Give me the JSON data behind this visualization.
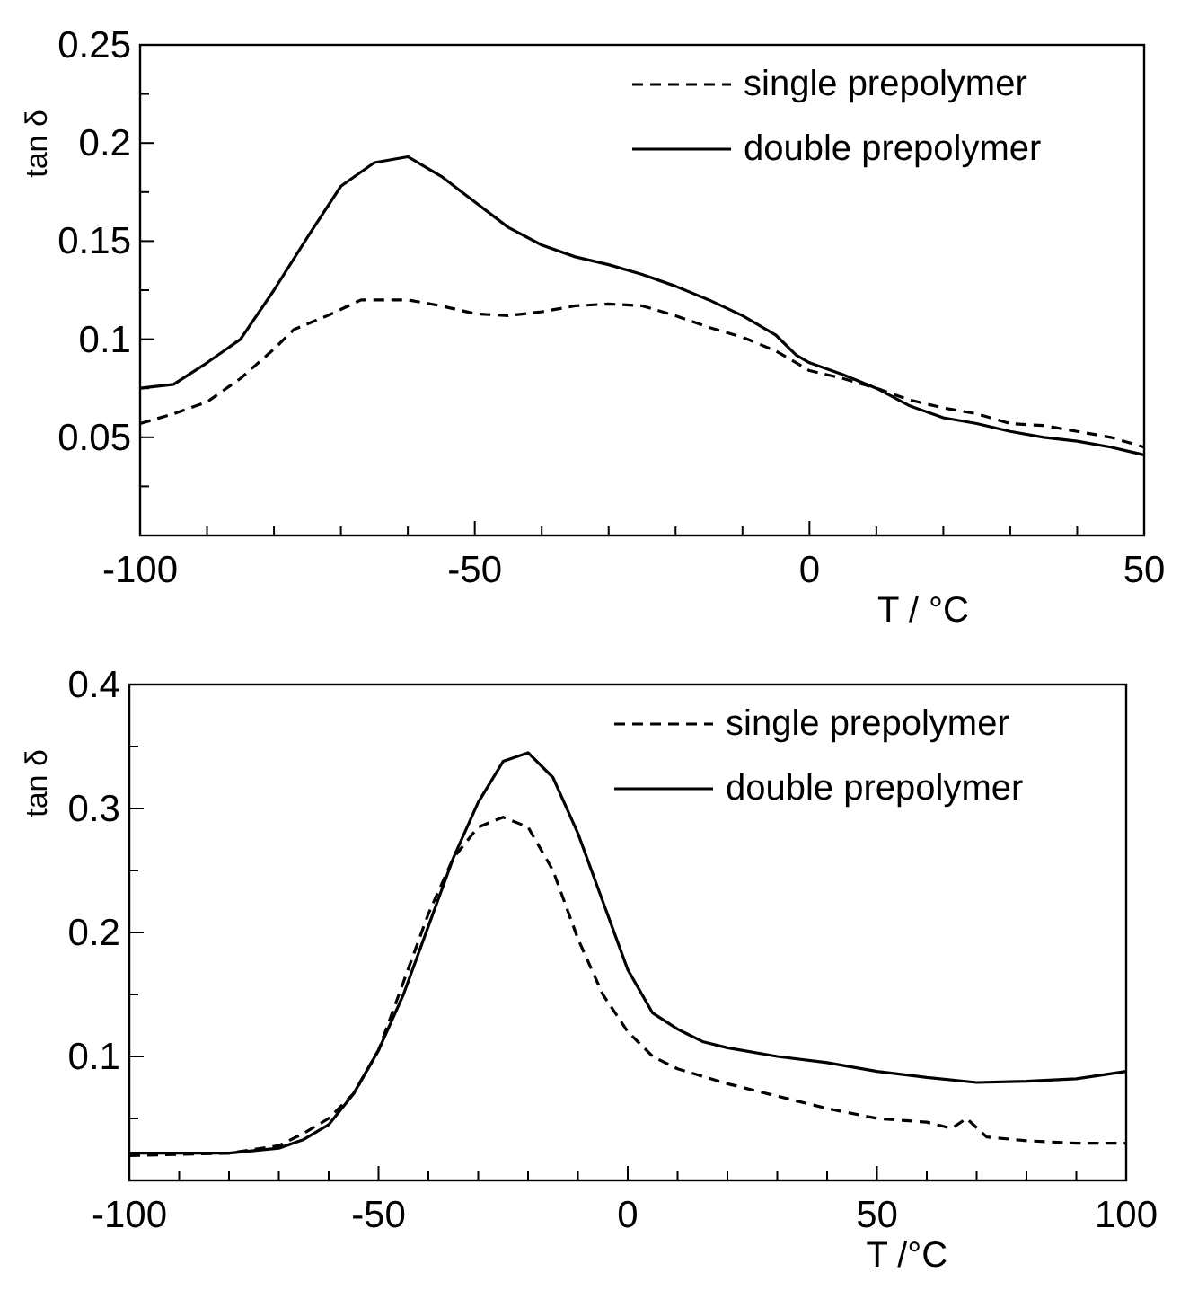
{
  "chart_data": [
    {
      "type": "line",
      "xlabel": "T  / °C",
      "ylabel": "tan δ",
      "xlim": [
        -100,
        50
      ],
      "ylim": [
        0,
        0.25
      ],
      "xticks": [
        -100,
        {
          "value": -90,
          "label": null
        },
        {
          "value": -80,
          "label": null
        },
        {
          "value": -70,
          "label": null
        },
        {
          "value": -60,
          "label": null
        },
        -50,
        {
          "value": -40,
          "label": null
        },
        {
          "value": -30,
          "label": null
        },
        {
          "value": -20,
          "label": null
        },
        {
          "value": -10,
          "label": null
        },
        0,
        {
          "value": 10,
          "label": null
        },
        {
          "value": 20,
          "label": null
        },
        {
          "value": 30,
          "label": null
        },
        {
          "value": 40,
          "label": null
        },
        50
      ],
      "yticks": [
        {
          "value": 0.025,
          "label": null
        },
        0.05,
        {
          "value": 0.075,
          "label": null
        },
        0.1,
        {
          "value": 0.125,
          "label": null
        },
        0.15,
        {
          "value": 0.175,
          "label": null
        },
        0.2,
        {
          "value": 0.225,
          "label": null
        },
        0.25
      ],
      "legend": "top right",
      "grid": false,
      "series": [
        {
          "name": "single prepolymer",
          "color": "#000000",
          "line_style": "dashed",
          "x": [
            -100,
            -95,
            -90,
            -85,
            -80,
            -77,
            -72,
            -67,
            -60,
            -55,
            -50,
            -45,
            -40,
            -35,
            -30,
            -25,
            -20,
            -15,
            -10,
            -5,
            0,
            5,
            10,
            15,
            20,
            25,
            30,
            35,
            40,
            45,
            50
          ],
          "values": [
            0.057,
            0.062,
            0.068,
            0.08,
            0.095,
            0.105,
            0.112,
            0.12,
            0.12,
            0.117,
            0.113,
            0.112,
            0.114,
            0.117,
            0.118,
            0.117,
            0.112,
            0.106,
            0.101,
            0.094,
            0.084,
            0.08,
            0.075,
            0.069,
            0.065,
            0.062,
            0.057,
            0.056,
            0.053,
            0.05,
            0.045
          ]
        },
        {
          "name": "double prepolymer",
          "color": "#000000",
          "line_style": "solid",
          "x": [
            -100,
            -95,
            -90,
            -85,
            -80,
            -75,
            -70,
            -65,
            -60,
            -55,
            -50,
            -45,
            -40,
            -35,
            -30,
            -25,
            -20,
            -15,
            -10,
            -5,
            -2,
            0,
            5,
            10,
            15,
            20,
            25,
            30,
            35,
            40,
            45,
            50
          ],
          "values": [
            0.075,
            0.077,
            0.088,
            0.1,
            0.125,
            0.152,
            0.178,
            0.19,
            0.193,
            0.183,
            0.17,
            0.157,
            0.148,
            0.142,
            0.138,
            0.133,
            0.127,
            0.12,
            0.112,
            0.102,
            0.092,
            0.088,
            0.082,
            0.075,
            0.066,
            0.06,
            0.057,
            0.053,
            0.05,
            0.048,
            0.045,
            0.041
          ]
        }
      ]
    },
    {
      "type": "line",
      "xlabel": "T  /°C",
      "ylabel": "tan δ",
      "xlim": [
        -100,
        100
      ],
      "ylim": [
        0,
        0.4
      ],
      "xticks": [
        -100,
        {
          "value": -90,
          "label": null
        },
        {
          "value": -80,
          "label": null
        },
        {
          "value": -70,
          "label": null
        },
        {
          "value": -60,
          "label": null
        },
        -50,
        {
          "value": -40,
          "label": null
        },
        {
          "value": -30,
          "label": null
        },
        {
          "value": -20,
          "label": null
        },
        {
          "value": -10,
          "label": null
        },
        0,
        {
          "value": 10,
          "label": null
        },
        {
          "value": 20,
          "label": null
        },
        {
          "value": 30,
          "label": null
        },
        {
          "value": 40,
          "label": null
        },
        50,
        {
          "value": 60,
          "label": null
        },
        {
          "value": 70,
          "label": null
        },
        {
          "value": 80,
          "label": null
        },
        {
          "value": 90,
          "label": null
        },
        100
      ],
      "yticks": [
        {
          "value": 0.05,
          "label": null
        },
        0.1,
        {
          "value": 0.15,
          "label": null
        },
        0.2,
        {
          "value": 0.25,
          "label": null
        },
        0.3,
        {
          "value": 0.35,
          "label": null
        },
        0.4
      ],
      "legend": "top right",
      "grid": false,
      "series": [
        {
          "name": "single prepolymer",
          "color": "#000000",
          "line_style": "dashed",
          "x": [
            -100,
            -80,
            -70,
            -65,
            -60,
            -55,
            -50,
            -45,
            -40,
            -35,
            -30,
            -25,
            -20,
            -15,
            -10,
            -5,
            0,
            5,
            10,
            20,
            30,
            40,
            50,
            60,
            65,
            68,
            72,
            80,
            90,
            100
          ],
          "values": [
            0.02,
            0.022,
            0.028,
            0.038,
            0.05,
            0.07,
            0.105,
            0.16,
            0.215,
            0.26,
            0.285,
            0.293,
            0.285,
            0.25,
            0.195,
            0.15,
            0.12,
            0.1,
            0.09,
            0.078,
            0.068,
            0.058,
            0.05,
            0.047,
            0.042,
            0.05,
            0.035,
            0.032,
            0.03,
            0.03
          ]
        },
        {
          "name": "double prepolymer",
          "color": "#000000",
          "line_style": "solid",
          "x": [
            -100,
            -80,
            -70,
            -65,
            -60,
            -55,
            -50,
            -45,
            -40,
            -35,
            -30,
            -25,
            -20,
            -15,
            -10,
            -5,
            0,
            5,
            10,
            15,
            20,
            30,
            40,
            50,
            60,
            70,
            80,
            90,
            100
          ],
          "values": [
            0.022,
            0.022,
            0.026,
            0.033,
            0.045,
            0.07,
            0.105,
            0.15,
            0.205,
            0.26,
            0.305,
            0.338,
            0.345,
            0.325,
            0.28,
            0.225,
            0.17,
            0.135,
            0.122,
            0.112,
            0.107,
            0.1,
            0.095,
            0.088,
            0.083,
            0.079,
            0.08,
            0.082,
            0.088
          ]
        }
      ]
    }
  ]
}
